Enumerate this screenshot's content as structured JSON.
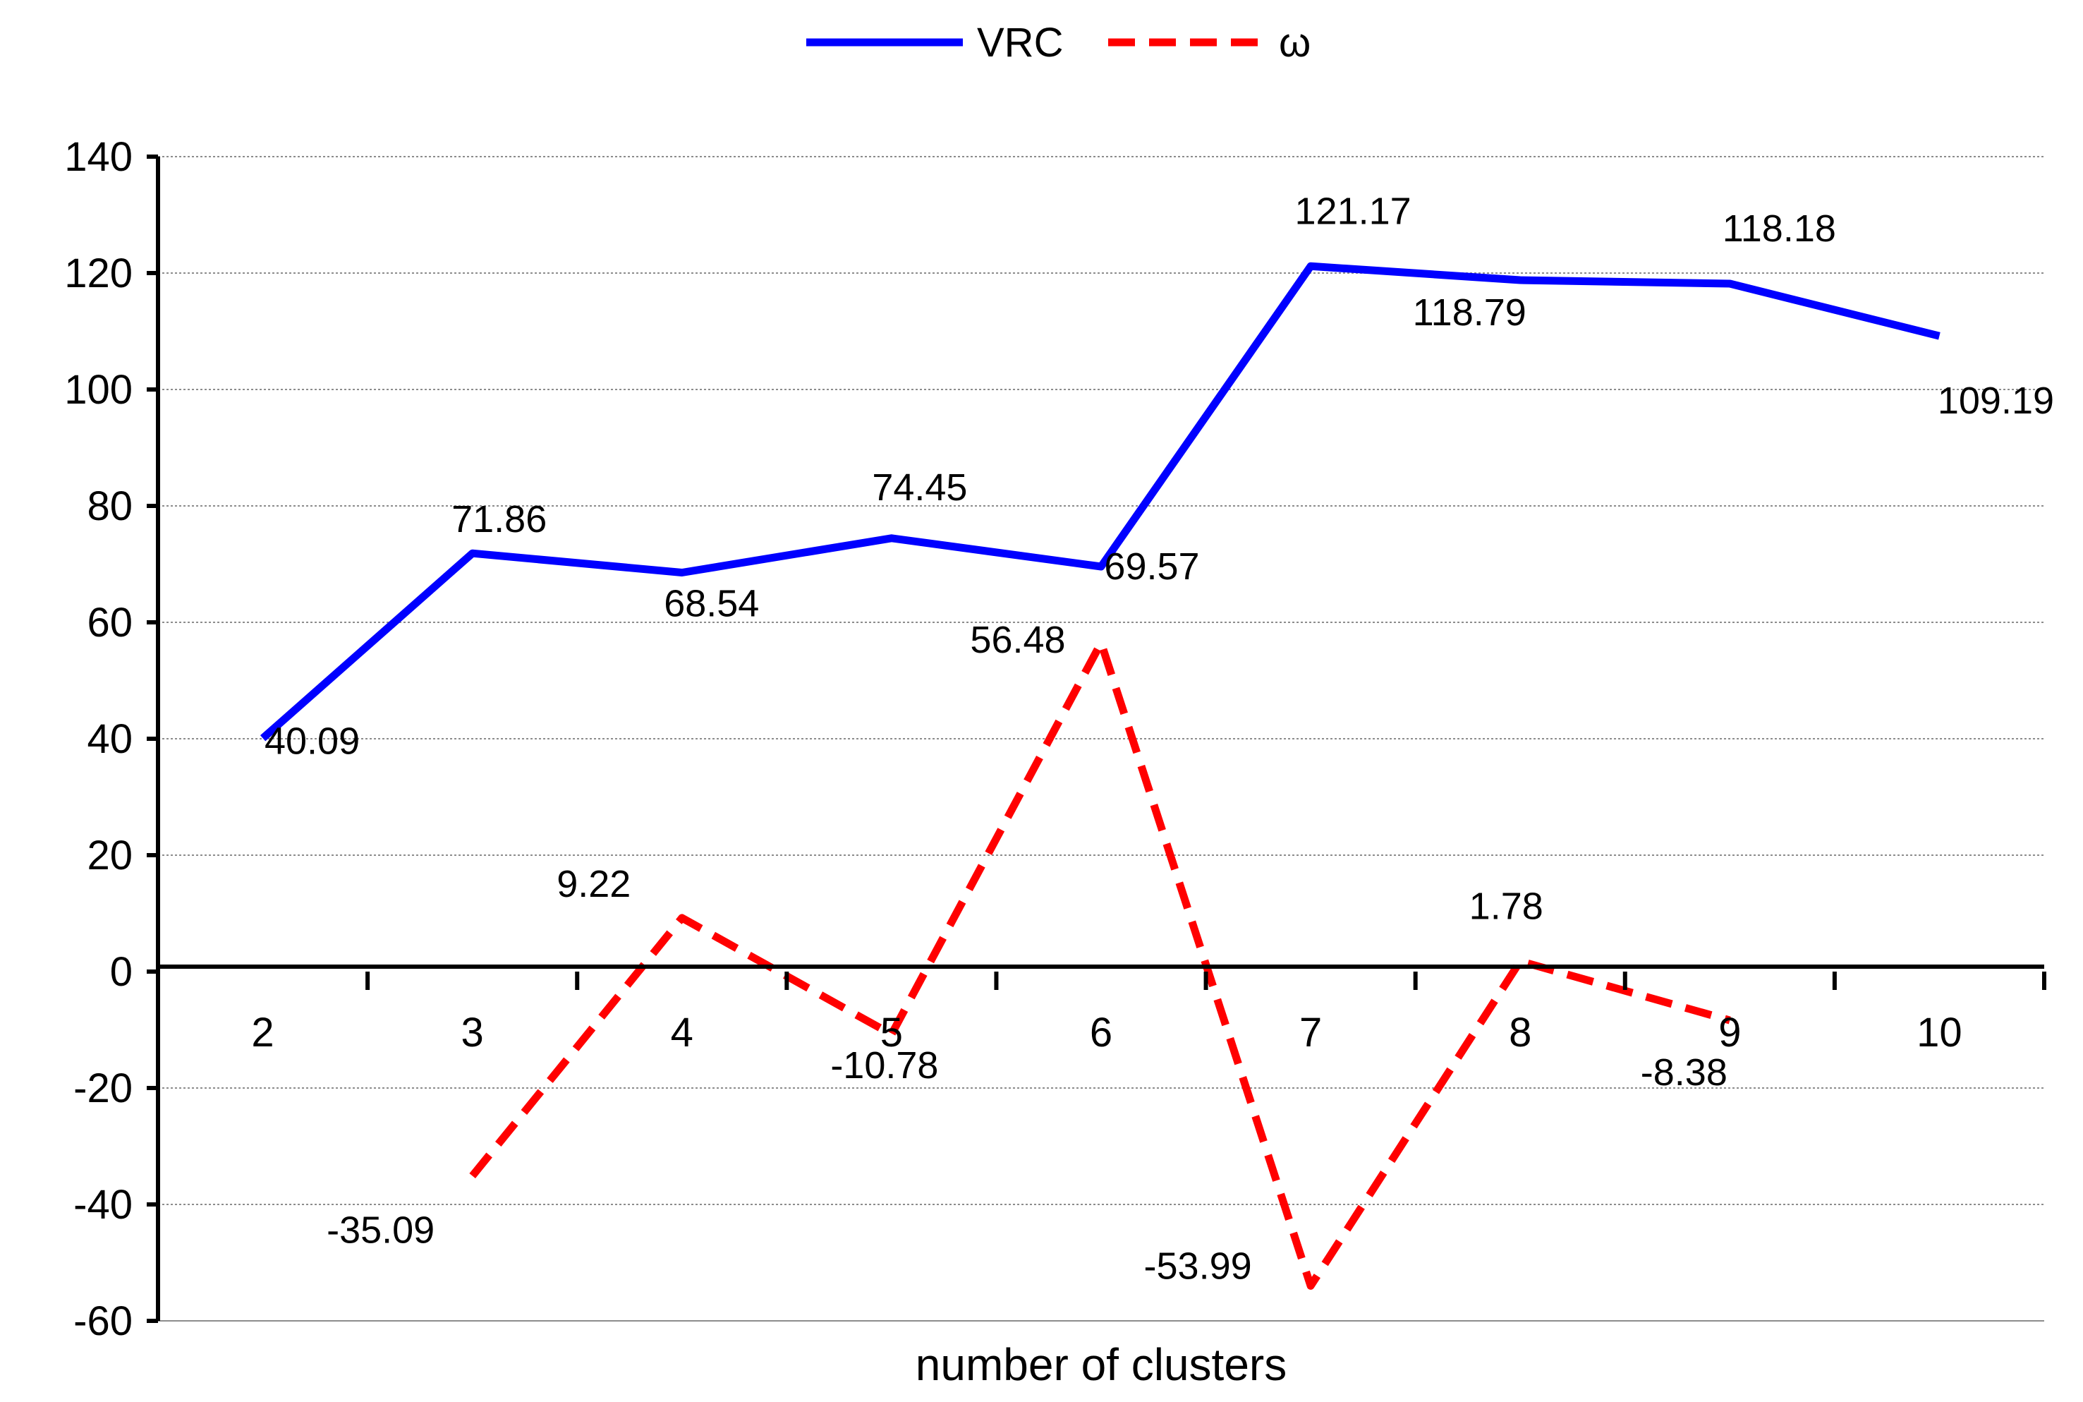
{
  "chart_data": {
    "type": "line",
    "title": "",
    "xlabel": "number of clusters",
    "ylabel": "",
    "categories": [
      "2",
      "3",
      "4",
      "5",
      "6",
      "7",
      "8",
      "9",
      "10"
    ],
    "ylim": [
      -60,
      140
    ],
    "yticks": [
      -60,
      -40,
      -20,
      0,
      20,
      40,
      60,
      80,
      100,
      120,
      140
    ],
    "grid": true,
    "legend_position": "top-center",
    "series": [
      {
        "name": "VRC",
        "color": "#0000ff",
        "line_style": "solid",
        "values": [
          40.09,
          71.86,
          68.54,
          74.45,
          69.57,
          121.17,
          118.79,
          118.18,
          109.19
        ],
        "labels": [
          "40.09",
          "71.86",
          "68.54",
          "74.45",
          "69.57",
          "121.17",
          "118.79",
          "118.18",
          "109.19"
        ]
      },
      {
        "name": "ω",
        "color": "#ff0000",
        "line_style": "dashed",
        "values": [
          null,
          -35.09,
          9.22,
          -10.78,
          56.48,
          -53.99,
          1.78,
          -8.38,
          null
        ],
        "labels": [
          "",
          "-35.09",
          "9.22",
          "-10.78",
          "56.48",
          "-53.99",
          "1.78",
          "-8.38",
          ""
        ]
      }
    ]
  }
}
